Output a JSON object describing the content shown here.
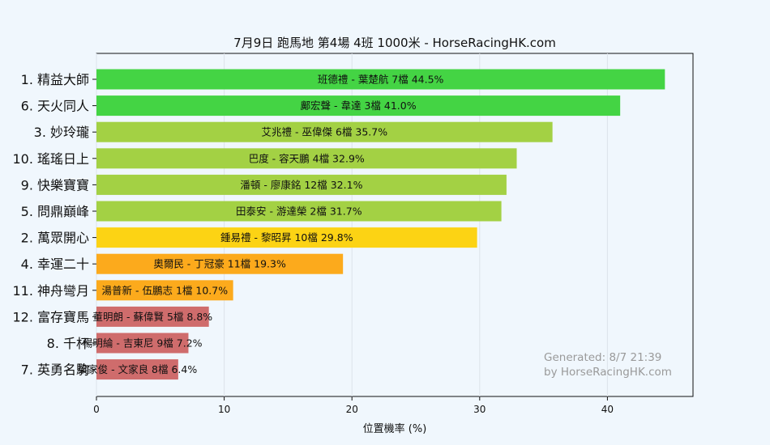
{
  "chart_data": {
    "type": "bar",
    "orientation": "horizontal",
    "title": "7月9日  跑馬地  第4場  4班  1000米 - HorseRacingHK.com",
    "xlabel": "位置機率 (%)",
    "ylabel": "",
    "xlim": [
      0,
      46.7
    ],
    "xticks": [
      "0",
      "10",
      "20",
      "30",
      "40"
    ],
    "grid": "vertical",
    "categories": [
      "1. 精益大師",
      "6. 天火同人",
      "3. 妙玲瓏",
      "10. 瑤瑤日上",
      "9. 快樂寶寶",
      "5. 問鼎巔峰",
      "2. 萬眾開心",
      "4. 幸運二十",
      "11. 神舟彎月",
      "12. 富存寶馬",
      "8. 千杯",
      "7. 英勇名駒"
    ],
    "values": [
      44.5,
      41.0,
      35.7,
      32.9,
      32.1,
      31.7,
      29.8,
      19.3,
      10.7,
      8.8,
      7.2,
      6.4
    ],
    "bar_labels": [
      "班德禮 - 葉楚航 7檔  44.5%",
      "鄺宏聲 - 韋達 3檔  41.0%",
      "艾兆禮 - 巫偉傑 6檔  35.7%",
      "巴度 - 容天鵬 4檔  32.9%",
      "潘頓 - 廖康銘 12檔  32.1%",
      "田泰安 - 游達榮 2檔  31.7%",
      "鍾易禮 - 黎昭昇 10檔  29.8%",
      "奧爾民 - 丁冠豪 11檔  19.3%",
      "湯普新 - 伍鵬志 1檔  10.7%",
      "董明朗 - 蘇偉賢 5檔  8.8%",
      "楊明綸 - 吉東尼 9檔  7.2%",
      "梁家俊 - 文家良 8檔  6.4%"
    ],
    "colors": [
      "#44d444",
      "#44d444",
      "#a3d144",
      "#a3d144",
      "#a3d144",
      "#a3d144",
      "#fcd314",
      "#fcaa1c",
      "#fcaa1c",
      "#cf6c6c",
      "#cf6c6c",
      "#cf6c6c"
    ],
    "annotation": [
      "Generated: 8/7 21:39",
      "by HorseRacingHK.com"
    ]
  }
}
